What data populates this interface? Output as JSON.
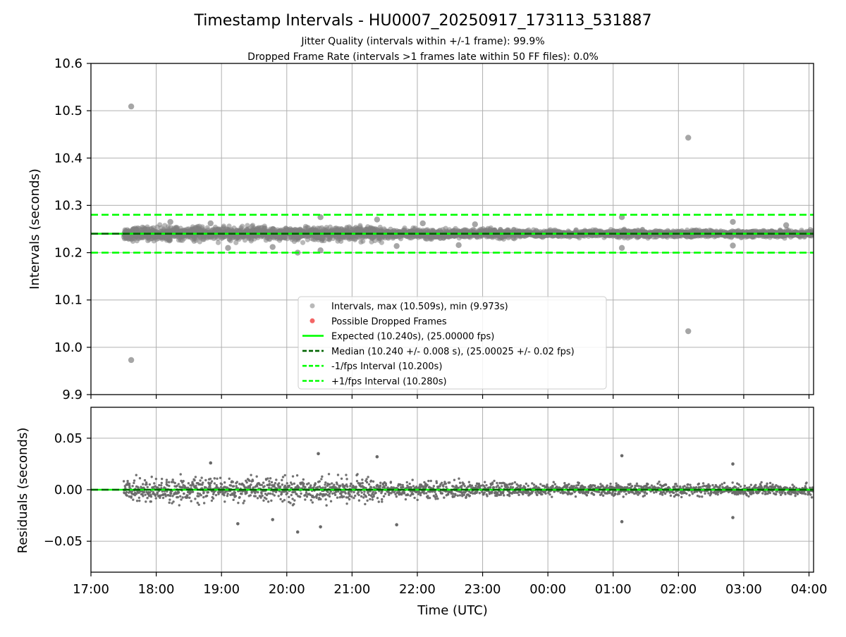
{
  "chart_data": [
    {
      "type": "scatter",
      "title": "Timestamp Intervals - HU0007_20250917_173113_531887",
      "subtitle_lines": [
        "Jitter Quality (intervals within +/-1 frame): 99.9%",
        "Dropped Frame Rate (intervals >1 frames late within 50 FF files): 0.0%"
      ],
      "xlabel": "",
      "ylabel": "Intervals (seconds)",
      "xlim_hours": [
        17.0,
        28.07
      ],
      "ylim": [
        9.9,
        10.6
      ],
      "yticks": [
        9.9,
        10.0,
        10.1,
        10.2,
        10.3,
        10.4,
        10.5,
        10.6
      ],
      "y_tick_labels": [
        "9.9",
        "10.0",
        "10.1",
        "10.2",
        "10.3",
        "10.4",
        "10.5",
        "10.6"
      ],
      "grid": true,
      "legend_position": "lower-center",
      "series": [
        {
          "name": "Intervals, max (10.509s), min (9.973s)",
          "color": "#808080",
          "style": "points",
          "band": {
            "center": 10.24,
            "spread_by_segment": [
              {
                "from_hour": 17.5,
                "to_hour": 21.5,
                "spread": 0.012
              },
              {
                "from_hour": 21.5,
                "to_hour": 23.5,
                "spread": 0.008
              },
              {
                "from_hour": 23.5,
                "to_hour": 28.07,
                "spread": 0.006
              }
            ],
            "approx_count": 3800
          },
          "points_time_value": [
            [
              "17:37",
              10.509
            ],
            [
              "17:37",
              9.973
            ],
            [
              "02:09",
              10.443
            ],
            [
              "02:09",
              10.034
            ],
            [
              "20:10",
              10.2
            ],
            [
              "20:31",
              10.205
            ],
            [
              "20:31",
              10.275
            ],
            [
              "21:23",
              10.27
            ],
            [
              "19:06",
              10.21
            ],
            [
              "19:47",
              10.212
            ],
            [
              "22:53",
              10.26
            ],
            [
              "01:08",
              10.275
            ],
            [
              "01:08",
              10.21
            ],
            [
              "02:50",
              10.265
            ],
            [
              "02:50",
              10.215
            ],
            [
              "03:39",
              10.258
            ],
            [
              "18:13",
              10.265
            ],
            [
              "18:50",
              10.262
            ],
            [
              "21:41",
              10.214
            ],
            [
              "22:05",
              10.262
            ],
            [
              "22:38",
              10.216
            ]
          ]
        },
        {
          "name": "Possible Dropped Frames",
          "color": "#f04040",
          "style": "points",
          "values": []
        },
        {
          "name": "Expected (10.240s), (25.00000 fps)",
          "color": "#00ff00",
          "style": "solid",
          "y": 10.24
        },
        {
          "name": "Median (10.240 +/- 0.008 s), (25.00025 +/- 0.02 fps)",
          "color": "#006400",
          "style": "dashed",
          "y": 10.24
        },
        {
          "name": "-1/fps Interval (10.200s)",
          "color": "#00ff00",
          "style": "dashed",
          "y": 10.2
        },
        {
          "name": "+1/fps Interval (10.280s)",
          "color": "#00ff00",
          "style": "dashed",
          "y": 10.28
        }
      ]
    },
    {
      "type": "scatter",
      "xlabel": "Time (UTC)",
      "ylabel": "Residuals (seconds)",
      "xlim_hours": [
        17.0,
        28.07
      ],
      "xticks_hours": [
        17,
        18,
        19,
        20,
        21,
        22,
        23,
        24,
        25,
        26,
        27,
        28
      ],
      "x_tick_labels": [
        "17:00",
        "18:00",
        "19:00",
        "20:00",
        "21:00",
        "22:00",
        "23:00",
        "00:00",
        "01:00",
        "02:00",
        "03:00",
        "04:00"
      ],
      "ylim": [
        -0.08,
        0.08
      ],
      "yticks": [
        -0.05,
        0.0,
        0.05
      ],
      "y_tick_labels": [
        "−0.05",
        "0.00",
        "0.05"
      ],
      "grid": true,
      "series": [
        {
          "color": "#696969",
          "style": "points",
          "band": {
            "center": 0.0,
            "spread_by_segment": [
              {
                "from_hour": 17.5,
                "to_hour": 21.5,
                "spread": 0.01
              },
              {
                "from_hour": 21.5,
                "to_hour": 23.5,
                "spread": 0.007
              },
              {
                "from_hour": 23.5,
                "to_hour": 28.07,
                "spread": 0.005
              }
            ],
            "approx_count": 2200
          },
          "points_time_value": [
            [
              "20:29",
              0.035
            ],
            [
              "20:10",
              -0.041
            ],
            [
              "20:31",
              -0.036
            ],
            [
              "21:23",
              0.032
            ],
            [
              "01:08",
              0.033
            ],
            [
              "01:08",
              -0.031
            ],
            [
              "02:50",
              0.025
            ],
            [
              "02:50",
              -0.027
            ],
            [
              "19:15",
              -0.033
            ],
            [
              "18:50",
              0.026
            ],
            [
              "19:47",
              -0.029
            ],
            [
              "21:41",
              -0.034
            ]
          ]
        },
        {
          "color": "#00ff00",
          "style": "solid",
          "y": 0.0
        },
        {
          "color": "#006400",
          "style": "dashed",
          "y": 0.0
        }
      ]
    }
  ]
}
